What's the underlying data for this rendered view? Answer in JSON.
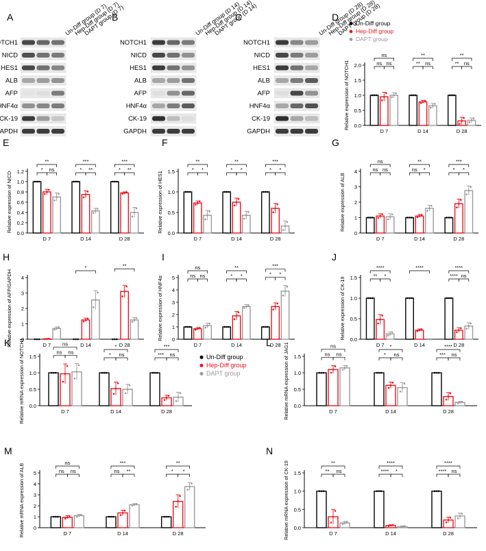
{
  "blots": [
    {
      "letter": "A",
      "groups": [
        "Un-Diff group (D 7)",
        "Hep-Diff group (D 7)",
        "DAPT group (D 7)"
      ],
      "bands": [
        "NOTCH1",
        "NICD",
        "HES1",
        "ALB",
        "AFP",
        "HNF4α",
        "CK-19",
        "GAPDH"
      ],
      "intensity": [
        [
          0.75,
          0.6,
          0.55
        ],
        [
          0.7,
          0.55,
          0.5
        ],
        [
          0.75,
          0.55,
          0.45
        ],
        [
          0.3,
          0.35,
          0.4
        ],
        [
          0.02,
          0.05,
          0.5
        ],
        [
          0.4,
          0.45,
          0.5
        ],
        [
          0.8,
          0.35,
          0.15
        ],
        [
          0.8,
          0.8,
          0.8
        ]
      ]
    },
    {
      "letter": "B",
      "groups": [
        "Un-Diff group (D 14)",
        "Hep-Diff group (D 14)",
        "DAPT group (D 14)"
      ],
      "bands": [
        "NOTCH1",
        "NICD",
        "HES1",
        "ALB",
        "AFP",
        "HNF4α",
        "CK-19",
        "GAPDH"
      ],
      "intensity": [
        [
          0.8,
          0.6,
          0.5
        ],
        [
          0.75,
          0.55,
          0.4
        ],
        [
          0.8,
          0.55,
          0.4
        ],
        [
          0.3,
          0.35,
          0.55
        ],
        [
          0.05,
          0.4,
          0.6
        ],
        [
          0.3,
          0.5,
          0.65
        ],
        [
          0.85,
          0.2,
          0.05
        ],
        [
          0.8,
          0.8,
          0.8
        ]
      ]
    },
    {
      "letter": "C",
      "groups": [
        "Un-Diff group (D 28)",
        "Hep-Diff group (D 28)",
        "DAPT group (D 28)"
      ],
      "bands": [
        "NOTCH1",
        "NICD",
        "HES1",
        "ALB",
        "AFP",
        "HNF4α",
        "CK-19",
        "GAPDH"
      ],
      "intensity": [
        [
          0.8,
          0.45,
          0.35
        ],
        [
          0.75,
          0.5,
          0.35
        ],
        [
          0.8,
          0.55,
          0.3
        ],
        [
          0.3,
          0.5,
          0.65
        ],
        [
          0.05,
          0.75,
          0.4
        ],
        [
          0.3,
          0.6,
          0.7
        ],
        [
          0.85,
          0.3,
          0.2
        ],
        [
          0.8,
          0.8,
          0.8
        ]
      ]
    }
  ],
  "legend": [
    "Un-Diff group",
    "Hep-Diff group",
    "DAPT group"
  ],
  "colors": {
    "un": "#000000",
    "hep": "#e8141e",
    "dapt": "#9a9a9a"
  },
  "chart_data": [
    {
      "letter": "D",
      "type": "bar",
      "ylabel": "Relative expression of NOTCH1",
      "categories": [
        "D 7",
        "D 14",
        "D 28"
      ],
      "yticks": [
        "0.0",
        "0.5",
        "1.0",
        "1.5",
        "2.0"
      ],
      "ylim": [
        0,
        2.0
      ],
      "legend": true,
      "series": [
        {
          "name": "Un-Diff group",
          "values": [
            1.0,
            1.0,
            1.0
          ],
          "err": [
            0,
            0,
            0
          ]
        },
        {
          "name": "Hep-Diff group",
          "values": [
            0.95,
            0.78,
            0.15
          ],
          "err": [
            0.15,
            0.05,
            0.12
          ]
        },
        {
          "name": "DAPT group",
          "values": [
            1.0,
            0.65,
            0.17
          ],
          "err": [
            0.08,
            0.08,
            0.08
          ]
        }
      ],
      "sig": [
        [
          "ns",
          "ns",
          "ns"
        ],
        [
          "**",
          "**",
          "ns"
        ],
        [
          "**",
          "**",
          "ns"
        ]
      ]
    },
    {
      "letter": "E",
      "type": "bar",
      "ylabel": "Relative expression of NICD",
      "categories": [
        "D 7",
        "D 14",
        "D 28"
      ],
      "yticks": [
        "0.0",
        "0.2",
        "0.4",
        "0.6",
        "0.8",
        "1.0",
        "1.2"
      ],
      "ylim": [
        0,
        1.2
      ],
      "series": [
        {
          "name": "Un-Diff group",
          "values": [
            1.0,
            1.0,
            1.0
          ],
          "err": [
            0,
            0,
            0
          ]
        },
        {
          "name": "Hep-Diff group",
          "values": [
            0.8,
            0.75,
            0.78
          ],
          "err": [
            0.05,
            0.07,
            0.02
          ]
        },
        {
          "name": "DAPT group",
          "values": [
            0.7,
            0.43,
            0.4
          ],
          "err": [
            0.08,
            0.05,
            0.1
          ]
        }
      ],
      "sig": [
        [
          "**",
          "*",
          "ns"
        ],
        [
          "***",
          "*",
          "**"
        ],
        [
          "***",
          "*",
          "**"
        ]
      ]
    },
    {
      "letter": "F",
      "type": "bar",
      "ylabel": "Relative expression of HES1",
      "categories": [
        "D 7",
        "D 14",
        "D 28"
      ],
      "yticks": [
        "0.0",
        "0.5",
        "1.0",
        "1.5"
      ],
      "ylim": [
        0,
        1.5
      ],
      "series": [
        {
          "name": "Un-Diff group",
          "values": [
            1.0,
            1.0,
            1.0
          ],
          "err": [
            0,
            0,
            0
          ]
        },
        {
          "name": "Hep-Diff group",
          "values": [
            0.73,
            0.75,
            0.6
          ],
          "err": [
            0.05,
            0.1,
            0.12
          ]
        },
        {
          "name": "DAPT group",
          "values": [
            0.43,
            0.43,
            0.17
          ],
          "err": [
            0.12,
            0.1,
            0.12
          ]
        }
      ],
      "sig": [
        [
          "**",
          "*",
          "*"
        ],
        [
          "**",
          "*",
          "*"
        ],
        [
          "***",
          "*",
          "*"
        ]
      ]
    },
    {
      "letter": "G",
      "type": "bar",
      "ylabel": "Relative expression of ALB",
      "categories": [
        "D 7",
        "D 14",
        "D 28"
      ],
      "yticks": [
        "0",
        "1",
        "2",
        "3",
        "4"
      ],
      "ylim": [
        0,
        4
      ],
      "series": [
        {
          "name": "Un-Diff group",
          "values": [
            1.0,
            1.0,
            1.0
          ],
          "err": [
            0,
            0,
            0
          ]
        },
        {
          "name": "Hep-Diff group",
          "values": [
            1.1,
            1.1,
            1.9
          ],
          "err": [
            0.15,
            0.1,
            0.3
          ]
        },
        {
          "name": "DAPT group",
          "values": [
            1.05,
            1.6,
            2.75
          ],
          "err": [
            0.2,
            0.2,
            0.3
          ]
        }
      ],
      "sig": [
        [
          "ns",
          "ns",
          "ns"
        ],
        [
          "**",
          "ns",
          "*"
        ],
        [
          "***",
          "*",
          "*"
        ]
      ]
    },
    {
      "letter": "H",
      "type": "bar",
      "ylabel": "Relative expression of AFP/GAPDH",
      "categories": [
        "D 7",
        "D 14",
        "D 28"
      ],
      "yticks": [
        "0",
        "1",
        "2",
        "3",
        "4"
      ],
      "ylim": [
        0,
        4
      ],
      "series": [
        {
          "name": "Un-Diff group",
          "values": [
            0.0,
            0.0,
            0.0
          ],
          "err": [
            0,
            0,
            0
          ]
        },
        {
          "name": "Hep-Diff group",
          "values": [
            0.02,
            1.25,
            3.1
          ],
          "err": [
            0.02,
            0.12,
            0.4
          ]
        },
        {
          "name": "DAPT group",
          "values": [
            0.7,
            2.55,
            1.25
          ],
          "err": [
            0.1,
            0.6,
            0.15
          ]
        }
      ],
      "sig": [
        [],
        [
          "*"
        ],
        [
          "**"
        ]
      ]
    },
    {
      "letter": "I",
      "type": "bar",
      "ylabel": "Relative expression of HNF4α",
      "categories": [
        "D 7",
        "D 14",
        "D 28"
      ],
      "yticks": [
        "0",
        "1",
        "2",
        "3",
        "4",
        "5"
      ],
      "ylim": [
        0,
        5
      ],
      "series": [
        {
          "name": "Un-Diff group",
          "values": [
            1.0,
            1.0,
            1.0
          ],
          "err": [
            0,
            0,
            0
          ]
        },
        {
          "name": "Hep-Diff group",
          "values": [
            0.85,
            1.9,
            2.65
          ],
          "err": [
            0.1,
            0.35,
            0.3
          ]
        },
        {
          "name": "DAPT group",
          "values": [
            1.1,
            2.65,
            3.9
          ],
          "err": [
            0.2,
            0.15,
            0.45
          ]
        }
      ],
      "sig": [
        [
          "ns",
          "ns",
          "ns"
        ],
        [
          "**",
          "*",
          "*"
        ],
        [
          "***",
          "*",
          "*"
        ]
      ]
    },
    {
      "letter": "J",
      "type": "bar",
      "ylabel": "Relative expression of CK-19",
      "categories": [
        "D 7",
        "D 14",
        "D 28"
      ],
      "yticks": [
        "0.0",
        "0.5",
        "1.0",
        "1.5"
      ],
      "ylim": [
        0,
        1.5
      ],
      "series": [
        {
          "name": "Un-Diff group",
          "values": [
            1.0,
            1.0,
            1.0
          ],
          "err": [
            0,
            0,
            0
          ]
        },
        {
          "name": "Hep-Diff group",
          "values": [
            0.48,
            0.22,
            0.22
          ],
          "err": [
            0.12,
            0.03,
            0.06
          ]
        },
        {
          "name": "DAPT group",
          "values": [
            0.13,
            0.0,
            0.32
          ],
          "err": [
            0.05,
            0,
            0.08
          ]
        }
      ],
      "sig": [
        [
          "****",
          "**",
          "*"
        ],
        [
          "****"
        ],
        [
          "****",
          "****",
          "ns"
        ]
      ]
    },
    {
      "letter": "K",
      "type": "bar",
      "ylabel": "Relative mRNA expression of NOTCH1",
      "categories": [
        "D 7",
        "D 14",
        "D 28"
      ],
      "yticks": [
        "0.0",
        "0.5",
        "1.0",
        "1.5"
      ],
      "ylim": [
        0,
        1.5
      ],
      "legend": true,
      "series": [
        {
          "name": "Un-Diff group",
          "values": [
            1.0,
            1.0,
            1.0
          ],
          "err": [
            0,
            0,
            0
          ]
        },
        {
          "name": "Hep-Diff group",
          "values": [
            0.97,
            0.52,
            0.24
          ],
          "err": [
            0.3,
            0.2,
            0.08
          ]
        },
        {
          "name": "DAPT group",
          "values": [
            1.03,
            0.5,
            0.26
          ],
          "err": [
            0.25,
            0.15,
            0.15
          ]
        }
      ],
      "sig": [
        [
          "ns",
          "ns",
          "ns"
        ],
        [
          "*",
          "*",
          "ns"
        ],
        [
          "***",
          "***",
          "ns"
        ]
      ]
    },
    {
      "letter": "L",
      "type": "bar",
      "ylabel": "Relative mRNA expression of JAG1",
      "categories": [
        "D 7",
        "D 14",
        "D 28"
      ],
      "yticks": [
        "0.0",
        "0.5",
        "1.0",
        "1.5"
      ],
      "ylim": [
        0,
        1.5
      ],
      "series": [
        {
          "name": "Un-Diff group",
          "values": [
            1.0,
            1.0,
            1.0
          ],
          "err": [
            0,
            0,
            0
          ]
        },
        {
          "name": "Hep-Diff group",
          "values": [
            1.1,
            0.62,
            0.28
          ],
          "err": [
            0.12,
            0.1,
            0.12
          ]
        },
        {
          "name": "DAPT group",
          "values": [
            1.15,
            0.55,
            0.1
          ],
          "err": [
            0.07,
            0.15,
            0.03
          ]
        }
      ],
      "sig": [
        [
          "ns",
          "ns",
          "ns"
        ],
        [
          "*",
          "*",
          "ns"
        ],
        [
          "****",
          "***",
          "ns"
        ]
      ]
    },
    {
      "letter": "M",
      "type": "bar",
      "ylabel": "Relative mRNA expression of ALB",
      "categories": [
        "D 7",
        "D 14",
        "D 28"
      ],
      "yticks": [
        "0",
        "1",
        "2",
        "3",
        "4",
        "5"
      ],
      "ylim": [
        0,
        5
      ],
      "series": [
        {
          "name": "Un-Diff group",
          "values": [
            1.0,
            1.0,
            1.0
          ],
          "err": [
            0,
            0,
            0
          ]
        },
        {
          "name": "Hep-Diff group",
          "values": [
            0.95,
            1.35,
            2.4
          ],
          "err": [
            0.15,
            0.25,
            0.6
          ]
        },
        {
          "name": "DAPT group",
          "values": [
            1.1,
            2.1,
            3.75
          ],
          "err": [
            0.12,
            0.1,
            0.35
          ]
        }
      ],
      "sig": [
        [
          "ns",
          "ns",
          "ns"
        ],
        [
          "***",
          "ns",
          "**"
        ],
        [
          "**",
          "*",
          "*"
        ]
      ]
    },
    {
      "letter": "N",
      "type": "bar",
      "ylabel": "Relative mRNA expression of CK-19",
      "categories": [
        "D 7",
        "D 14",
        "D 28"
      ],
      "yticks": [
        "0.0",
        "0.5",
        "1.0",
        "1.5"
      ],
      "ylim": [
        0,
        1.5
      ],
      "series": [
        {
          "name": "Un-Diff group",
          "values": [
            1.0,
            1.0,
            1.0
          ],
          "err": [
            0,
            0,
            0
          ]
        },
        {
          "name": "Hep-Diff group",
          "values": [
            0.3,
            0.06,
            0.21
          ],
          "err": [
            0.2,
            0.02,
            0.08
          ]
        },
        {
          "name": "DAPT group",
          "values": [
            0.13,
            0.03,
            0.32
          ],
          "err": [
            0.04,
            0.02,
            0.08
          ]
        }
      ],
      "sig": [
        [
          "**",
          "**",
          "ns"
        ],
        [
          "****",
          "****",
          "*"
        ],
        [
          "****",
          "****",
          "ns"
        ]
      ]
    }
  ]
}
